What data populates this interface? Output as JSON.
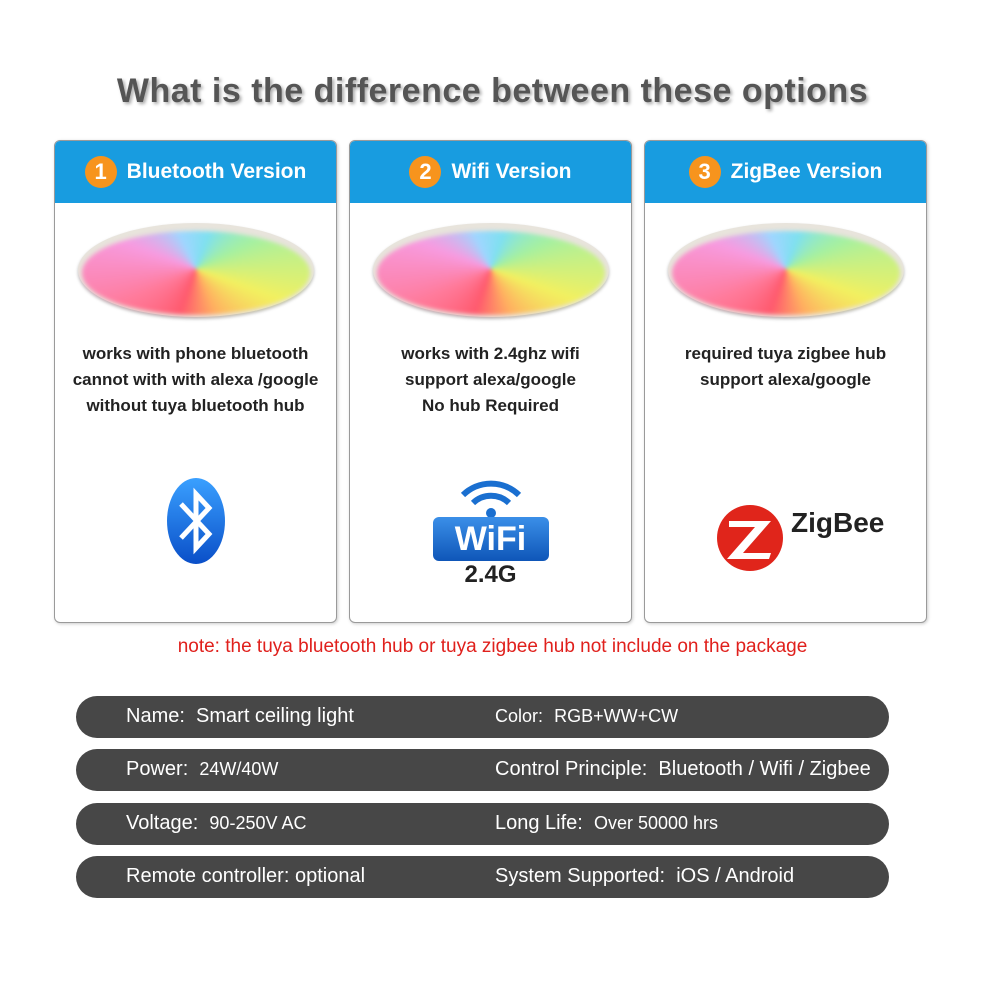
{
  "title": "What is the difference between these options",
  "colors": {
    "header_blue": "#189ce0",
    "badge_orange": "#f7941d",
    "note_red": "#e0201c",
    "spec_bar": "#474747"
  },
  "cards": [
    {
      "number": "1",
      "label": "Bluetooth Version",
      "lines": [
        "works with phone bluetooth",
        "cannot with with alexa /google",
        "without tuya bluetooth hub"
      ],
      "icon": "bluetooth-icon"
    },
    {
      "number": "2",
      "label": "Wifi Version",
      "lines": [
        "works with 2.4ghz wifi",
        "support alexa/google",
        "No hub Required"
      ],
      "icon": "wifi-icon",
      "icon_text": "WiFi",
      "icon_sub": "2.4G"
    },
    {
      "number": "3",
      "label": "ZigBee Version",
      "lines": [
        "required tuya zigbee hub",
        "support alexa/google"
      ],
      "icon": "zigbee-icon",
      "icon_text": "ZigBee"
    }
  ],
  "note": "note: the tuya bluetooth hub or tuya zigbee hub not include on the package",
  "specs": [
    {
      "left_label": "Name:",
      "left_value": "Smart ceiling light",
      "right_label": "Color:",
      "right_value": "RGB+WW+CW"
    },
    {
      "left_label": "Power:",
      "left_value": "24W/40W",
      "right_label": "Control Principle:",
      "right_value": "Bluetooth / Wifi / Zigbee"
    },
    {
      "left_label": "Voltage:",
      "left_value": "90-250V AC",
      "right_label": "Long Life:",
      "right_value": "Over 50000 hrs"
    },
    {
      "left_label": "Remote controller:",
      "left_value": "optional",
      "right_label": "System Supported:",
      "right_value": "iOS / Android"
    }
  ]
}
